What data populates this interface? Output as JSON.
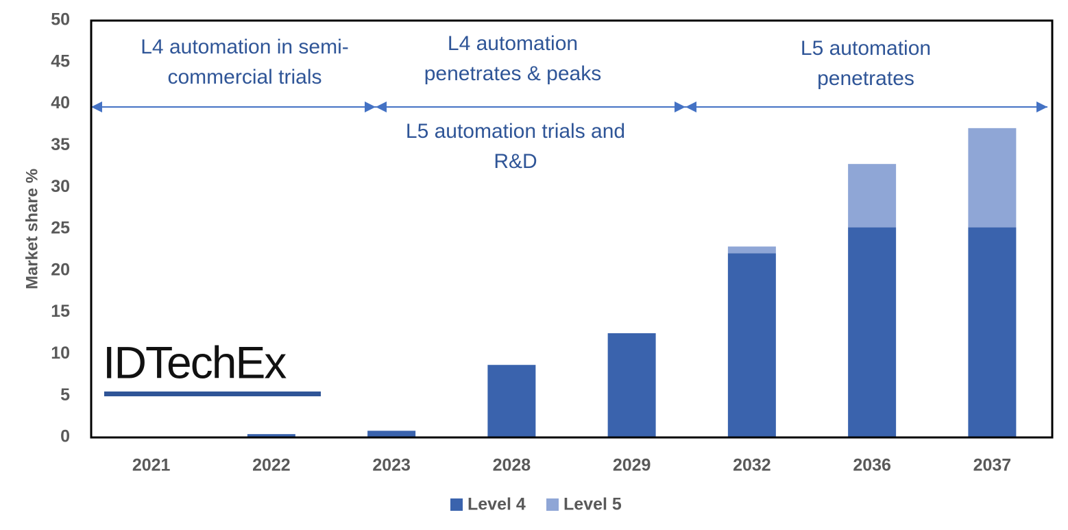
{
  "chart_data": {
    "type": "stacked_bar",
    "y_label": "Market share  %",
    "categories": [
      "2021",
      "2022",
      "2023",
      "2028",
      "2029",
      "2032",
      "2036",
      "2037"
    ],
    "series": [
      {
        "name": "Level 4",
        "color": "#3a63ad",
        "values": [
          0,
          0.4,
          0.8,
          8.7,
          12.5,
          22.1,
          25.2,
          25.2
        ]
      },
      {
        "name": "Level 5",
        "color": "#8fa6d6",
        "values": [
          0,
          0,
          0,
          0,
          0,
          0.8,
          7.6,
          11.9
        ]
      }
    ],
    "ylim": [
      0,
      50
    ],
    "yticks": [
      0,
      5,
      10,
      15,
      20,
      25,
      30,
      35,
      40,
      45,
      50
    ],
    "grid": false,
    "annotations": [
      [
        "L4 automation in semi-",
        "commercial trials"
      ],
      [
        "L4 automation",
        "penetrates & peaks"
      ],
      [
        "L5 automation",
        "penetrates"
      ],
      [
        "L5 automation trials and",
        "R&D"
      ]
    ],
    "logo": "IDTechEx",
    "legend": "bottom"
  }
}
